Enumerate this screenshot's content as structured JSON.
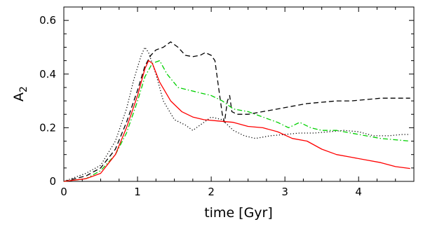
{
  "chart_data": {
    "type": "line",
    "title": "",
    "xlabel": "time [Gyr]",
    "ylabel_main": "A",
    "ylabel_sub": "2",
    "xlim": [
      0,
      4.75
    ],
    "ylim": [
      0,
      0.65
    ],
    "xticks": [
      0,
      1,
      2,
      3,
      4
    ],
    "xtick_labels": [
      "0",
      "1",
      "2",
      "3",
      "4"
    ],
    "yticks": [
      0,
      0.2,
      0.4,
      0.6
    ],
    "ytick_labels": [
      "0",
      "0.2",
      "0.4",
      "0.6"
    ],
    "grid": false,
    "legend": "none",
    "series": [
      {
        "color": "#000000",
        "style": "dashed",
        "points": [
          [
            0,
            0
          ],
          [
            0.3,
            0.02
          ],
          [
            0.5,
            0.05
          ],
          [
            0.7,
            0.12
          ],
          [
            0.85,
            0.22
          ],
          [
            1.0,
            0.34
          ],
          [
            1.1,
            0.43
          ],
          [
            1.18,
            0.47
          ],
          [
            1.25,
            0.49
          ],
          [
            1.35,
            0.5
          ],
          [
            1.45,
            0.52
          ],
          [
            1.55,
            0.5
          ],
          [
            1.65,
            0.47
          ],
          [
            1.75,
            0.465
          ],
          [
            1.85,
            0.47
          ],
          [
            1.92,
            0.48
          ],
          [
            2.0,
            0.47
          ],
          [
            2.05,
            0.45
          ],
          [
            2.1,
            0.35
          ],
          [
            2.15,
            0.25
          ],
          [
            2.18,
            0.22
          ],
          [
            2.22,
            0.3
          ],
          [
            2.25,
            0.32
          ],
          [
            2.28,
            0.26
          ],
          [
            2.35,
            0.25
          ],
          [
            2.5,
            0.25
          ],
          [
            2.7,
            0.26
          ],
          [
            2.9,
            0.27
          ],
          [
            3.1,
            0.28
          ],
          [
            3.3,
            0.29
          ],
          [
            3.5,
            0.295
          ],
          [
            3.7,
            0.3
          ],
          [
            3.9,
            0.3
          ],
          [
            4.1,
            0.305
          ],
          [
            4.3,
            0.31
          ],
          [
            4.5,
            0.31
          ],
          [
            4.7,
            0.31
          ]
        ]
      },
      {
        "color": "#000000",
        "style": "dotted",
        "points": [
          [
            0,
            0
          ],
          [
            0.3,
            0.03
          ],
          [
            0.5,
            0.06
          ],
          [
            0.7,
            0.15
          ],
          [
            0.85,
            0.27
          ],
          [
            0.95,
            0.38
          ],
          [
            1.05,
            0.47
          ],
          [
            1.1,
            0.5
          ],
          [
            1.15,
            0.48
          ],
          [
            1.25,
            0.4
          ],
          [
            1.35,
            0.3
          ],
          [
            1.5,
            0.23
          ],
          [
            1.65,
            0.21
          ],
          [
            1.75,
            0.19
          ],
          [
            1.85,
            0.21
          ],
          [
            2.0,
            0.24
          ],
          [
            2.15,
            0.23
          ],
          [
            2.3,
            0.19
          ],
          [
            2.45,
            0.17
          ],
          [
            2.6,
            0.16
          ],
          [
            2.8,
            0.17
          ],
          [
            3.0,
            0.175
          ],
          [
            3.2,
            0.18
          ],
          [
            3.4,
            0.18
          ],
          [
            3.6,
            0.185
          ],
          [
            3.8,
            0.19
          ],
          [
            4.0,
            0.185
          ],
          [
            4.2,
            0.17
          ],
          [
            4.4,
            0.17
          ],
          [
            4.6,
            0.175
          ],
          [
            4.7,
            0.175
          ]
        ]
      },
      {
        "color": "#00d000",
        "style": "dashdot",
        "points": [
          [
            0,
            0
          ],
          [
            0.3,
            0.01
          ],
          [
            0.5,
            0.04
          ],
          [
            0.7,
            0.1
          ],
          [
            0.85,
            0.18
          ],
          [
            1.0,
            0.3
          ],
          [
            1.1,
            0.39
          ],
          [
            1.2,
            0.44
          ],
          [
            1.3,
            0.45
          ],
          [
            1.4,
            0.4
          ],
          [
            1.55,
            0.35
          ],
          [
            1.7,
            0.34
          ],
          [
            1.85,
            0.33
          ],
          [
            2.0,
            0.32
          ],
          [
            2.15,
            0.3
          ],
          [
            2.3,
            0.27
          ],
          [
            2.5,
            0.26
          ],
          [
            2.7,
            0.24
          ],
          [
            2.9,
            0.22
          ],
          [
            3.05,
            0.2
          ],
          [
            3.2,
            0.22
          ],
          [
            3.35,
            0.2
          ],
          [
            3.5,
            0.19
          ],
          [
            3.7,
            0.19
          ],
          [
            3.9,
            0.18
          ],
          [
            4.1,
            0.17
          ],
          [
            4.3,
            0.16
          ],
          [
            4.5,
            0.155
          ],
          [
            4.7,
            0.15
          ]
        ]
      },
      {
        "color": "#ff0000",
        "style": "solid",
        "points": [
          [
            0,
            0
          ],
          [
            0.3,
            0.01
          ],
          [
            0.5,
            0.03
          ],
          [
            0.7,
            0.1
          ],
          [
            0.85,
            0.2
          ],
          [
            1.0,
            0.32
          ],
          [
            1.1,
            0.42
          ],
          [
            1.15,
            0.45
          ],
          [
            1.2,
            0.44
          ],
          [
            1.3,
            0.37
          ],
          [
            1.45,
            0.3
          ],
          [
            1.6,
            0.26
          ],
          [
            1.75,
            0.24
          ],
          [
            1.9,
            0.23
          ],
          [
            2.1,
            0.225
          ],
          [
            2.3,
            0.22
          ],
          [
            2.5,
            0.205
          ],
          [
            2.7,
            0.2
          ],
          [
            2.9,
            0.185
          ],
          [
            3.1,
            0.16
          ],
          [
            3.3,
            0.15
          ],
          [
            3.5,
            0.12
          ],
          [
            3.7,
            0.1
          ],
          [
            3.9,
            0.09
          ],
          [
            4.1,
            0.08
          ],
          [
            4.3,
            0.07
          ],
          [
            4.5,
            0.055
          ],
          [
            4.7,
            0.048
          ]
        ]
      }
    ]
  }
}
